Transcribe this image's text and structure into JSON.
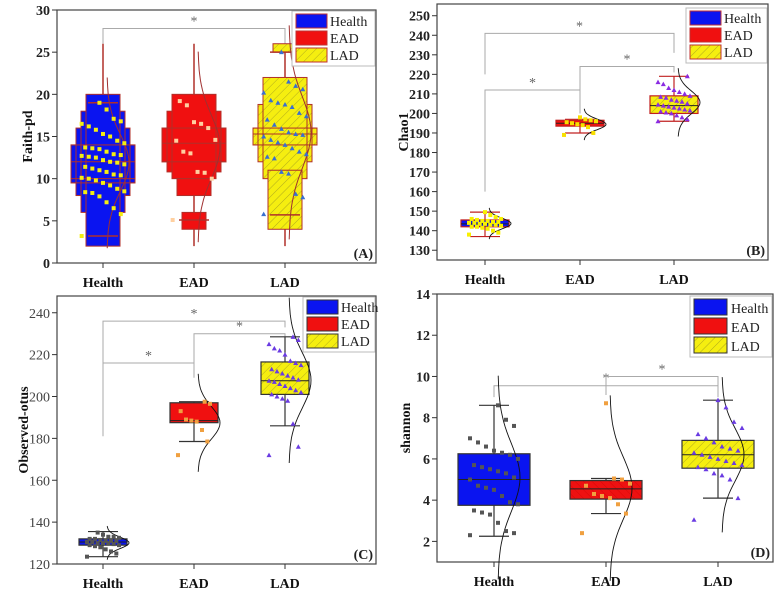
{
  "chart_data": [
    {
      "panel_label": "(A)",
      "type": "box",
      "ylabel": "Faith-pd",
      "ylim": [
        0,
        30
      ],
      "yticks": [
        0,
        5,
        10,
        15,
        20,
        25,
        30
      ],
      "tick_weight": "bold",
      "categories": [
        "Health",
        "EAD",
        "LAD"
      ],
      "legend": [
        "Health",
        "EAD",
        "LAD"
      ],
      "legend_position": "top-right",
      "style": "letter-value",
      "groups": [
        {
          "name": "Health",
          "levels": [
            [
              9.5,
              14
            ],
            [
              8,
              16
            ],
            [
              6,
              18
            ],
            [
              2,
              20
            ]
          ],
          "median": 12,
          "mean": 10,
          "caps": [
            3.2,
            19
          ],
          "range": [
            2,
            26
          ],
          "points": [
            3.2,
            5.8,
            6.5,
            7.2,
            7.9,
            8.3,
            8.4,
            8.5,
            8.8,
            9.2,
            9.5,
            9.8,
            10,
            10.1,
            10.4,
            10.5,
            10.8,
            11,
            11.2,
            11.4,
            11.7,
            11.9,
            12,
            12.2,
            12.5,
            12.6,
            12.7,
            12.8,
            12.9,
            13.2,
            13.5,
            13.6,
            13.7,
            14.2,
            14.5,
            15,
            15.3,
            15.8,
            16.2,
            16.5,
            16.8,
            17.1,
            18.2,
            19
          ]
        },
        {
          "name": "EAD",
          "levels": [
            [
              12,
              16
            ],
            [
              10.8,
              18
            ],
            [
              10,
              20
            ],
            [
              8,
              10
            ],
            [
              4,
              6
            ]
          ],
          "median": 14.2,
          "caps": [
            5.1,
            null
          ],
          "range": [
            2,
            26
          ],
          "points": [
            5.1,
            10,
            10.7,
            10.8,
            13,
            13.2,
            14.5,
            14.6,
            16,
            16.5,
            16.7,
            18.7,
            19.2
          ]
        },
        {
          "name": "LAD",
          "levels": [
            [
              14,
              16
            ],
            [
              12,
              18.8
            ],
            [
              10,
              22
            ],
            [
              4,
              11
            ],
            [
              25,
              26
            ]
          ],
          "median": 15.3,
          "caps": [
            5.7,
            25
          ],
          "range": [
            2,
            26
          ],
          "points": [
            5.8,
            7.8,
            8.2,
            10.6,
            10.8,
            12.4,
            12.6,
            12.9,
            13.2,
            13.6,
            14,
            14.3,
            14.6,
            15,
            15.2,
            15.3,
            15.5,
            15.9,
            16.4,
            17,
            17.4,
            17.8,
            18.5,
            18.8,
            19,
            19.3,
            20.2,
            20.6,
            21,
            21.5,
            25
          ]
        }
      ],
      "brackets": [
        {
          "from": "Health",
          "to": "LAD",
          "y": 27.8,
          "left_end": 26,
          "right_end": 26,
          "label": "*"
        }
      ]
    },
    {
      "panel_label": "(B)",
      "type": "box",
      "ylabel": "Chao1",
      "ylim": [
        125,
        256
      ],
      "yticks": [
        130,
        140,
        150,
        160,
        170,
        180,
        190,
        200,
        210,
        220,
        230,
        240,
        250
      ],
      "tick_weight": "bold",
      "categories": [
        "Health",
        "EAD",
        "LAD"
      ],
      "legend": [
        "Health",
        "EAD",
        "LAD"
      ],
      "legend_position": "top-right",
      "style": "box",
      "groups": [
        {
          "name": "Health",
          "box": [
            142,
            145.5
          ],
          "median": 143.5,
          "caps": [
            137,
            149.5
          ],
          "points": [
            138,
            139,
            140,
            141,
            141.5,
            142,
            142,
            142.5,
            143,
            143,
            143.5,
            143.5,
            144,
            144,
            144.5,
            144.5,
            145,
            145,
            145.5,
            146,
            146,
            147,
            148,
            149.5
          ]
        },
        {
          "name": "EAD",
          "box": [
            193.5,
            196.5
          ],
          "median": 195,
          "caps": [
            190,
            197
          ],
          "points": [
            189,
            190,
            193,
            194,
            194.5,
            195,
            195.5,
            196,
            196.5,
            197,
            198
          ]
        },
        {
          "name": "LAD",
          "box": [
            200,
            209
          ],
          "median": 204,
          "caps": [
            196,
            219
          ],
          "points": [
            196,
            197,
            198,
            199,
            200,
            200.5,
            201,
            201.5,
            202,
            202.5,
            203,
            203.5,
            204,
            204.5,
            205,
            206,
            206.5,
            207,
            208,
            208.5,
            209,
            210,
            211,
            212,
            213,
            215,
            216,
            219
          ]
        }
      ],
      "brackets": [
        {
          "from": "Health",
          "to": "LAD",
          "y": 241,
          "left_end": 220,
          "right_end": 231,
          "label": "*"
        },
        {
          "from": "EAD",
          "to": "LAD",
          "y": 224,
          "left_end": 200,
          "right_end": 221,
          "label": "*"
        },
        {
          "from": "Health",
          "to": "EAD",
          "y": 212,
          "left_end": 160,
          "right_end": 200,
          "label": "*"
        }
      ]
    },
    {
      "panel_label": "(C)",
      "type": "box",
      "ylabel": "Observed-otus",
      "ylim": [
        120,
        248
      ],
      "yticks": [
        120,
        140,
        160,
        180,
        200,
        220,
        240
      ],
      "tick_weight": "normal",
      "categories": [
        "Health",
        "EAD",
        "LAD"
      ],
      "legend": [
        "Health",
        "EAD",
        "LAD"
      ],
      "legend_position": "top-right",
      "style": "box",
      "groups": [
        {
          "name": "Health",
          "box": [
            129,
            132
          ],
          "median": 130.5,
          "caps": [
            123.5,
            135.5
          ],
          "points": [
            123.5,
            125,
            126,
            127,
            128,
            128.5,
            129,
            129,
            129.5,
            130,
            130,
            130,
            130.5,
            130.5,
            131,
            131,
            131,
            131.5,
            132,
            132,
            132.5,
            133,
            133,
            134,
            135
          ]
        },
        {
          "name": "EAD",
          "box": [
            187.5,
            197
          ],
          "median": 188.5,
          "caps": [
            178.5,
            197.5
          ],
          "points": [
            172,
            178.5,
            184,
            188,
            188.5,
            189,
            193,
            196.5,
            197.5
          ]
        },
        {
          "name": "LAD",
          "box": [
            201,
            216.5
          ],
          "median": 207.5,
          "caps": [
            186,
            228.5
          ],
          "points": [
            172,
            176,
            187,
            198,
            199,
            200,
            201,
            202,
            203,
            204,
            205,
            206,
            207,
            207.5,
            208,
            209,
            210,
            211,
            212,
            213,
            215,
            216,
            217,
            220,
            222,
            223,
            225,
            227,
            228.5
          ]
        }
      ],
      "brackets": [
        {
          "from": "Health",
          "to": "LAD",
          "y": 236,
          "left_end": 181,
          "right_end": 233,
          "label": "*"
        },
        {
          "from": "EAD",
          "to": "LAD",
          "y": 230,
          "left_end": 209,
          "right_end": 227,
          "label": "*"
        },
        {
          "from": "Health",
          "to": "EAD",
          "y": 216,
          "left_end": 198,
          "right_end": 209,
          "label": "*"
        }
      ]
    },
    {
      "panel_label": "(D)",
      "type": "box",
      "ylabel": "shannon",
      "ylim": [
        1,
        14
      ],
      "yticks": [
        2,
        4,
        6,
        8,
        10,
        12,
        14
      ],
      "tick_weight": "bold",
      "categories": [
        "Health",
        "EAD",
        "LAD"
      ],
      "legend": [
        "Health",
        "EAD",
        "LAD"
      ],
      "legend_position": "top-right",
      "style": "box",
      "groups": [
        {
          "name": "Health",
          "box": [
            3.75,
            6.25
          ],
          "median": 5,
          "caps": [
            2.25,
            8.6
          ],
          "points": [
            2.3,
            2.4,
            2.5,
            2.9,
            3.3,
            3.4,
            3.5,
            3.8,
            3.9,
            4.2,
            4.5,
            4.6,
            4.7,
            5,
            5.1,
            5.3,
            5.4,
            5.5,
            5.6,
            5.7,
            6,
            6.2,
            6.3,
            6.4,
            6.6,
            6.8,
            7,
            7.6,
            7.9,
            8.6
          ]
        },
        {
          "name": "EAD",
          "box": [
            4.05,
            4.95
          ],
          "median": 4.55,
          "caps": [
            3.35,
            5.05
          ],
          "points": [
            2.4,
            3.35,
            3.8,
            4.1,
            4.2,
            4.3,
            4.7,
            4.8,
            5,
            5.05,
            8.7
          ]
        },
        {
          "name": "LAD",
          "box": [
            5.55,
            6.9
          ],
          "median": 6.2,
          "caps": [
            4.1,
            8.85
          ],
          "points": [
            3.05,
            4.1,
            5,
            5.2,
            5.3,
            5.5,
            5.6,
            5.7,
            5.8,
            5.9,
            6,
            6.1,
            6.2,
            6.3,
            6.4,
            6.5,
            6.6,
            6.8,
            7,
            7.2,
            7.5,
            7.8,
            8.5,
            8.85
          ]
        }
      ],
      "brackets": [
        {
          "from": "Health",
          "to": "LAD",
          "y": 9.55,
          "left_end": 9,
          "right_end": 9,
          "label": "*"
        },
        {
          "from": "EAD",
          "to": "LAD",
          "y": 10.0,
          "left_end": 9.1,
          "right_end": 9.1,
          "label": "*"
        }
      ]
    }
  ],
  "colors": {
    "Health": "#0a14f0",
    "EAD": "#f01010",
    "LAD": "#f5ee10"
  }
}
